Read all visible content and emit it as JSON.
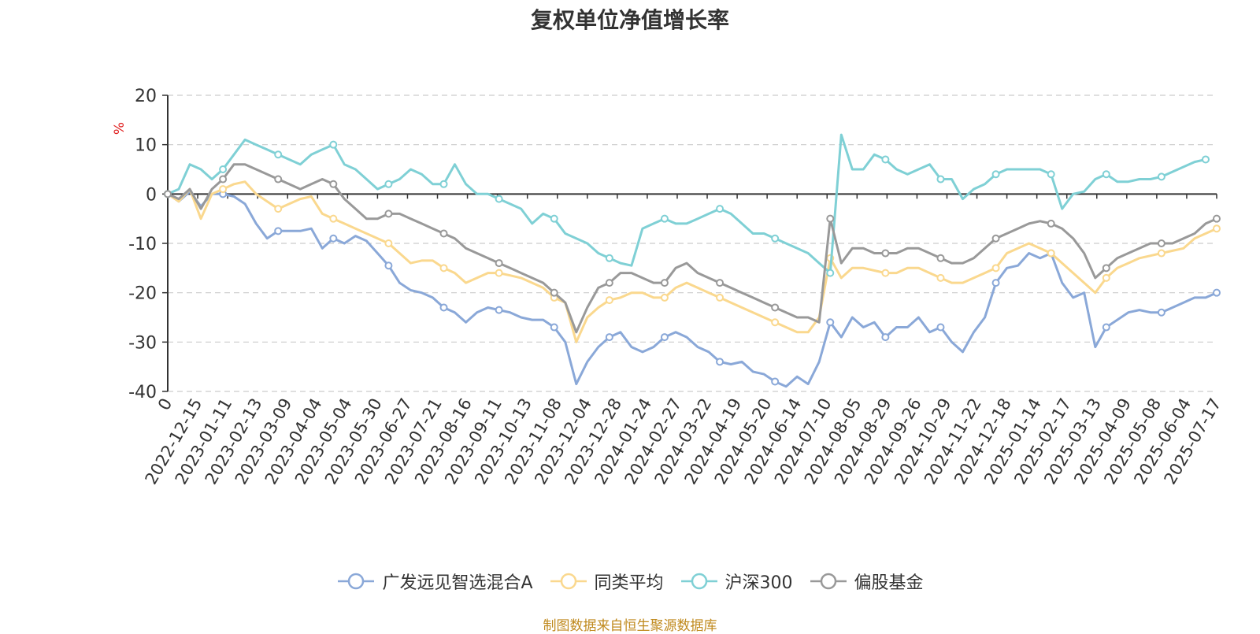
{
  "chart_data": {
    "type": "line",
    "title": "复权单位净值增长率",
    "ylabel": "%",
    "ylim": [
      -40,
      20
    ],
    "yticks": [
      -40,
      -30,
      -20,
      -10,
      0,
      10,
      20
    ],
    "grid": true,
    "legend_position": "bottom",
    "x_tick_labels": [
      "0",
      "2022-12-15",
      "2023-01-11",
      "2023-02-13",
      "2023-03-09",
      "2023-04-04",
      "2023-05-04",
      "2023-05-30",
      "2023-06-27",
      "2023-07-21",
      "2023-08-16",
      "2023-09-11",
      "2023-10-13",
      "2023-11-08",
      "2023-12-04",
      "2023-12-28",
      "2024-01-24",
      "2024-02-27",
      "2024-03-22",
      "2024-04-19",
      "2024-05-20",
      "2024-06-14",
      "2024-07-10",
      "2024-08-05",
      "2024-08-29",
      "2024-09-26",
      "2024-10-29",
      "2024-11-22",
      "2024-12-18",
      "2025-01-14",
      "2025-02-17",
      "2025-03-13",
      "2025-04-09",
      "2025-05-08",
      "2025-06-04",
      "2025-07-17"
    ],
    "series": [
      {
        "name": "广发远见智选混合A",
        "color": "#8aa8d8",
        "values": [
          0,
          -1.5,
          0.5,
          -2.5,
          0,
          0,
          -0.5,
          -2,
          -6,
          -9,
          -7.5,
          -7.5,
          -7.5,
          -7,
          -11,
          -9,
          -10,
          -8.5,
          -9.5,
          -12,
          -14.5,
          -18,
          -19.5,
          -20,
          -21,
          -23,
          -24,
          -26,
          -24,
          -23,
          -23.5,
          -24,
          -25,
          -25.5,
          -25.5,
          -27,
          -30,
          -38.5,
          -34,
          -31,
          -29,
          -28,
          -31,
          -32,
          -31,
          -29,
          -28,
          -29,
          -31,
          -32,
          -34,
          -34.5,
          -34,
          -36,
          -36.5,
          -38,
          -39,
          -37,
          -38.5,
          -34,
          -26,
          -29,
          -25,
          -27,
          -26,
          -29,
          -27,
          -27,
          -25,
          -28,
          -27,
          -30,
          -32,
          -28,
          -25,
          -18,
          -15,
          -14.5,
          -12,
          -13,
          -12,
          -18,
          -21,
          -20,
          -31,
          -27,
          -25.5,
          -24,
          -23.5,
          -24,
          -24,
          -23,
          -22,
          -21,
          -21,
          -20
        ]
      },
      {
        "name": "同类平均",
        "color": "#fad88e",
        "values": [
          0,
          -1.5,
          1,
          -5,
          0,
          1,
          2,
          2.5,
          0,
          -1.5,
          -3,
          -2,
          -1,
          -0.5,
          -4,
          -5,
          -6,
          -7,
          -8,
          -9,
          -10,
          -12,
          -14,
          -13.5,
          -13.5,
          -15,
          -16,
          -18,
          -17,
          -16,
          -16,
          -16.5,
          -17,
          -18,
          -19,
          -21,
          -22,
          -30,
          -25,
          -23,
          -21.5,
          -21,
          -20,
          -20,
          -21,
          -21,
          -19,
          -18,
          -19,
          -20,
          -21,
          -22,
          -23,
          -24,
          -25,
          -26,
          -27,
          -28,
          -28,
          -25,
          -13,
          -17,
          -15,
          -15,
          -15.5,
          -16,
          -16,
          -15,
          -15,
          -16,
          -17,
          -18,
          -18,
          -17,
          -16,
          -15,
          -12,
          -11,
          -10,
          -11,
          -12,
          -14,
          -16,
          -18,
          -20,
          -17,
          -15,
          -14,
          -13,
          -12.5,
          -12,
          -11.5,
          -11,
          -9,
          -8,
          -7
        ]
      },
      {
        "name": "沪深300",
        "color": "#7fd0d5",
        "values": [
          0,
          1,
          6,
          5,
          3,
          5,
          8,
          11,
          10,
          9,
          8,
          7,
          6,
          8,
          9,
          10,
          6,
          5,
          3,
          1,
          2,
          3,
          5,
          4,
          2,
          2,
          6,
          2,
          0,
          0,
          -1,
          -2,
          -3,
          -6,
          -4,
          -5,
          -8,
          -9,
          -10,
          -12,
          -13,
          -14,
          -14.5,
          -7,
          -6,
          -5,
          -6,
          -6,
          -5,
          -4,
          -3,
          -4,
          -6,
          -8,
          -8,
          -9,
          -10,
          -11,
          -12,
          -14,
          -16,
          12,
          5,
          5,
          8,
          7,
          5,
          4,
          5,
          6,
          3,
          3,
          -1,
          1,
          2,
          4,
          5,
          5,
          5,
          5,
          4,
          -3,
          0,
          0.5,
          3,
          4,
          2.5,
          2.5,
          3,
          3,
          3.5,
          4.5,
          5.5,
          6.5,
          7
        ]
      },
      {
        "name": "偏股基金",
        "color": "#999999",
        "values": [
          0,
          -1,
          1,
          -3,
          1,
          3,
          6,
          6,
          5,
          4,
          3,
          2,
          1,
          2,
          3,
          2,
          -1,
          -3,
          -5,
          -5,
          -4,
          -4,
          -5,
          -6,
          -7,
          -8,
          -9,
          -11,
          -12,
          -13,
          -14,
          -15,
          -16,
          -17,
          -18,
          -20,
          -22,
          -28,
          -23,
          -19,
          -18,
          -16,
          -16,
          -17,
          -18,
          -18,
          -15,
          -14,
          -16,
          -17,
          -18,
          -19,
          -20,
          -21,
          -22,
          -23,
          -24,
          -25,
          -25,
          -26,
          -5,
          -14,
          -11,
          -11,
          -12,
          -12,
          -12,
          -11,
          -11,
          -12,
          -13,
          -14,
          -14,
          -13,
          -11,
          -9,
          -8,
          -7,
          -6,
          -5.5,
          -6,
          -7,
          -9,
          -12,
          -17,
          -15,
          -13,
          -12,
          -11,
          -10,
          -10,
          -10,
          -9,
          -8,
          -6,
          -5
        ]
      }
    ]
  },
  "source_note": "制图数据来自恒生聚源数据库"
}
